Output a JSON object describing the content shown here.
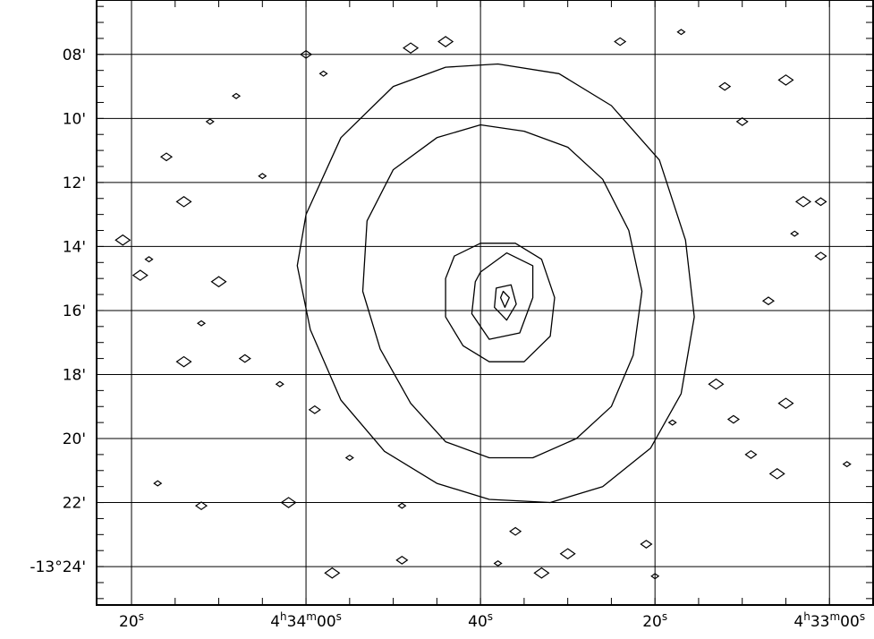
{
  "chart_data": {
    "type": "contour",
    "title": "",
    "xlabel": "",
    "ylabel": "",
    "x_axis": {
      "quantity": "right ascension (seconds offset, decreasing to the right)",
      "ticks": [
        {
          "value": 80,
          "label_main": "20",
          "label_unit": "s"
        },
        {
          "value": 60,
          "label_main": "4^h34^m00",
          "label_unit": "s"
        },
        {
          "value": 40,
          "label_main": "40",
          "label_unit": "s"
        },
        {
          "value": 20,
          "label_main": "20",
          "label_unit": "s"
        },
        {
          "value": 0,
          "label_main": "4^h33^m00",
          "label_unit": "s"
        }
      ],
      "labels_text": [
        "20s",
        "4h34m00s",
        "40s",
        "20s",
        "4h33m00s"
      ],
      "range": [
        84,
        -5
      ]
    },
    "y_axis": {
      "quantity": "declination (arcmin)",
      "ticks": [
        {
          "value": 8,
          "label": "08'"
        },
        {
          "value": 10,
          "label": "10'"
        },
        {
          "value": 12,
          "label": "12'"
        },
        {
          "value": 14,
          "label": "14'"
        },
        {
          "value": 16,
          "label": "16'"
        },
        {
          "value": 18,
          "label": "18'"
        },
        {
          "value": 20,
          "label": "20'"
        },
        {
          "value": 22,
          "label": "22'"
        },
        {
          "value": 24,
          "label": "-13°24'"
        }
      ],
      "range": [
        6.3,
        25.2
      ]
    },
    "grid": true,
    "peak": {
      "x": 37,
      "y": 15.6
    },
    "contours": [
      {
        "level": 1,
        "points": [
          [
            40,
            14.8
          ],
          [
            37,
            14.2
          ],
          [
            34,
            14.6
          ],
          [
            34,
            15.6
          ],
          [
            35.5,
            16.7
          ],
          [
            39,
            16.9
          ],
          [
            41,
            16.1
          ],
          [
            40.6,
            15.1
          ]
        ]
      },
      {
        "level": 2,
        "points": [
          [
            43,
            14.3
          ],
          [
            40,
            13.9
          ],
          [
            36,
            13.9
          ],
          [
            33,
            14.4
          ],
          [
            31.5,
            15.6
          ],
          [
            32,
            16.8
          ],
          [
            35,
            17.6
          ],
          [
            39,
            17.6
          ],
          [
            42,
            17.1
          ],
          [
            44,
            16.2
          ],
          [
            44,
            15
          ]
        ]
      },
      {
        "level": 3,
        "points": [
          [
            38.2,
            15.3
          ],
          [
            36.5,
            15.2
          ],
          [
            35.9,
            15.8
          ],
          [
            37,
            16.3
          ],
          [
            38.4,
            15.9
          ]
        ]
      },
      {
        "level": 4,
        "points": [
          [
            37.4,
            15.4
          ],
          [
            36.7,
            15.6
          ],
          [
            37.2,
            15.9
          ],
          [
            37.7,
            15.6
          ]
        ]
      }
    ],
    "outer_contours": [
      {
        "points": [
          [
            53,
            13.2
          ],
          [
            50,
            11.6
          ],
          [
            45,
            10.6
          ],
          [
            40,
            10.2
          ],
          [
            35,
            10.4
          ],
          [
            30,
            10.9
          ],
          [
            26,
            11.9
          ],
          [
            23,
            13.5
          ],
          [
            21.5,
            15.4
          ],
          [
            22.5,
            17.4
          ],
          [
            25,
            19
          ],
          [
            29,
            20
          ],
          [
            34,
            20.6
          ],
          [
            39,
            20.6
          ],
          [
            44,
            20.1
          ],
          [
            48,
            18.9
          ],
          [
            51.5,
            17.2
          ],
          [
            53.5,
            15.4
          ]
        ]
      },
      {
        "points": [
          [
            60,
            13
          ],
          [
            56,
            10.6
          ],
          [
            50,
            9
          ],
          [
            44,
            8.4
          ],
          [
            38,
            8.3
          ],
          [
            31,
            8.6
          ],
          [
            25,
            9.6
          ],
          [
            19.5,
            11.3
          ],
          [
            16.5,
            13.8
          ],
          [
            15.5,
            16.2
          ],
          [
            17,
            18.6
          ],
          [
            20.5,
            20.3
          ],
          [
            26,
            21.5
          ],
          [
            32,
            22
          ],
          [
            39,
            21.9
          ],
          [
            45,
            21.4
          ],
          [
            51,
            20.4
          ],
          [
            56,
            18.8
          ],
          [
            59.5,
            16.6
          ],
          [
            61,
            14.6
          ]
        ]
      }
    ],
    "isolated_features": [
      {
        "x": 17,
        "y": 7.3
      },
      {
        "x": 24,
        "y": 7.6
      },
      {
        "x": 48,
        "y": 7.8
      },
      {
        "x": 58,
        "y": 8.6
      },
      {
        "x": 12,
        "y": 9
      },
      {
        "x": 5,
        "y": 8.8
      },
      {
        "x": 68,
        "y": 9.3
      },
      {
        "x": 76,
        "y": 11.2
      },
      {
        "x": 74,
        "y": 12.6
      },
      {
        "x": 65,
        "y": 11.8
      },
      {
        "x": 10,
        "y": 10.1
      },
      {
        "x": 3,
        "y": 12.6
      },
      {
        "x": 4,
        "y": 13.6
      },
      {
        "x": 1,
        "y": 14.3
      },
      {
        "x": 81,
        "y": 13.8
      },
      {
        "x": 78,
        "y": 14.4
      },
      {
        "x": 7,
        "y": 15.7
      },
      {
        "x": 70,
        "y": 15.1
      },
      {
        "x": 72,
        "y": 16.4
      },
      {
        "x": 67,
        "y": 17.5
      },
      {
        "x": 74,
        "y": 17.6
      },
      {
        "x": 63,
        "y": 18.3
      },
      {
        "x": 11,
        "y": 19.4
      },
      {
        "x": 13,
        "y": 18.3
      },
      {
        "x": 77,
        "y": 21.4
      },
      {
        "x": 72,
        "y": 22.1
      },
      {
        "x": 62,
        "y": 22
      },
      {
        "x": 49,
        "y": 22.1
      },
      {
        "x": 36,
        "y": 22.9
      },
      {
        "x": 30,
        "y": 23.6
      },
      {
        "x": 38,
        "y": 23.9
      },
      {
        "x": 49,
        "y": 23.8
      },
      {
        "x": 57,
        "y": 24.2
      },
      {
        "x": 20,
        "y": 24.3
      },
      {
        "x": 9,
        "y": 20.5
      },
      {
        "x": 6,
        "y": 21.1
      },
      {
        "x": -2,
        "y": 20.8
      },
      {
        "x": 1,
        "y": 12.6
      },
      {
        "x": 5,
        "y": 18.9
      },
      {
        "x": 18,
        "y": 19.5
      },
      {
        "x": 21,
        "y": 23.3
      },
      {
        "x": 33,
        "y": 24.2
      },
      {
        "x": 55,
        "y": 20.6
      },
      {
        "x": 59,
        "y": 19.1
      },
      {
        "x": 79,
        "y": 14.9
      },
      {
        "x": 71,
        "y": 10.1
      },
      {
        "x": 60,
        "y": 8
      },
      {
        "x": 44,
        "y": 7.6
      }
    ]
  }
}
